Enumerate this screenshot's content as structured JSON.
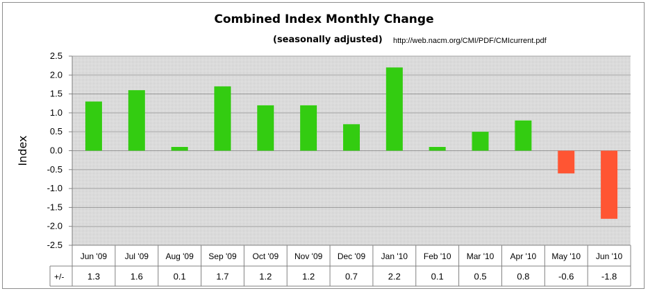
{
  "chart_data": {
    "type": "bar",
    "title": "Combined Index Monthly Change",
    "subtitle": "(seasonally adjusted)",
    "source": "http://web.nacm.org/CMI/PDF/CMIcurrent.pdf",
    "ylabel": "Index",
    "xlabel": "",
    "ylim": [
      -2.5,
      2.5
    ],
    "y_ticks": [
      "2.5",
      "2.0",
      "1.5",
      "1.0",
      "0.5",
      "0.0",
      "-0.5",
      "-1.0",
      "-1.5",
      "-2.0",
      "-2.5"
    ],
    "y_tick_values": [
      2.5,
      2.0,
      1.5,
      1.0,
      0.5,
      0.0,
      -0.5,
      -1.0,
      -1.5,
      -2.0,
      -2.5
    ],
    "categories": [
      "Jun '09",
      "Jul '09",
      "Aug '09",
      "Sep '09",
      "Oct '09",
      "Nov '09",
      "Dec '09",
      "Jan '10",
      "Feb '10",
      "Mar '10",
      "Apr '10",
      "May '10",
      "Jun '10"
    ],
    "values": [
      1.3,
      1.6,
      0.1,
      1.7,
      1.2,
      1.2,
      0.7,
      2.2,
      0.1,
      0.5,
      0.8,
      -0.6,
      -1.8
    ],
    "grid": true,
    "legend": "none",
    "data_table": {
      "row_label": "+/-",
      "cells": [
        "1.3",
        "1.6",
        "0.1",
        "1.7",
        "1.2",
        "1.2",
        "0.7",
        "2.2",
        "0.1",
        "0.5",
        "0.8",
        "-0.6",
        "-1.8"
      ]
    },
    "colors": {
      "positive": "#33cc11",
      "negative": "#ff5533",
      "plot_background": "#d9d9d9",
      "gridline": "#a0a0a0"
    }
  }
}
